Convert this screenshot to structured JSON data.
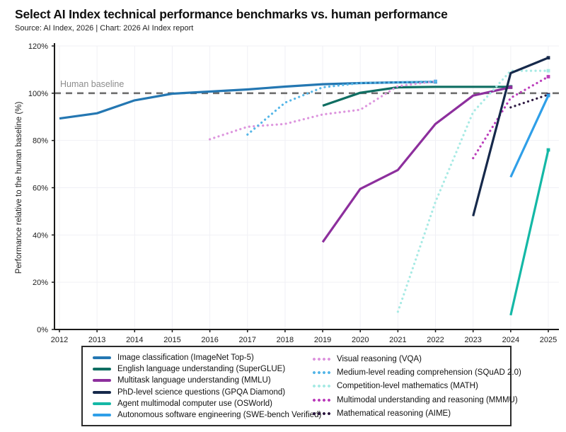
{
  "chart_data": {
    "type": "line",
    "title": "Select AI Index technical performance benchmarks vs. human performance",
    "source": "Source: AI Index, 2026 | Chart: 2026 AI Index report",
    "ylabel": "Performance relative to the human baseline (%)",
    "xlim": [
      2012,
      2025
    ],
    "ylim": [
      0,
      120
    ],
    "x_ticks": [
      2012,
      2013,
      2014,
      2015,
      2016,
      2017,
      2018,
      2019,
      2020,
      2021,
      2022,
      2023,
      2024,
      2025
    ],
    "y_ticks": [
      0,
      20,
      40,
      60,
      80,
      100,
      120
    ],
    "y_tick_suffix": "%",
    "grid": true,
    "legend_position": "bottom",
    "baseline": {
      "value": 100,
      "label": "Human baseline",
      "color": "#6e6e6e",
      "label_color": "#8c8c8c"
    },
    "axis_color": "#1a1a1a",
    "grid_color": "#f0f0f5",
    "series": [
      {
        "name": "Image classification (ImageNet Top-5)",
        "color": "#2477b2",
        "line_style": "solid",
        "legend_column": 1,
        "points": [
          [
            2012,
            89.3
          ],
          [
            2013,
            91.5
          ],
          [
            2014,
            97.0
          ],
          [
            2015,
            99.8
          ],
          [
            2016,
            100.7
          ],
          [
            2017,
            101.6
          ],
          [
            2018,
            102.8
          ],
          [
            2019,
            103.8
          ],
          [
            2020,
            104.3
          ],
          [
            2021,
            104.6
          ],
          [
            2022,
            104.8
          ]
        ]
      },
      {
        "name": "English language understanding (SuperGLUE)",
        "color": "#0f6e62",
        "line_style": "solid",
        "legend_column": 1,
        "points": [
          [
            2019,
            94.7
          ],
          [
            2020,
            100.2
          ],
          [
            2021,
            102.5
          ],
          [
            2022,
            102.7
          ],
          [
            2023,
            102.7
          ],
          [
            2024,
            102.7
          ]
        ]
      },
      {
        "name": "Multitask language understanding (MMLU)",
        "color": "#8d2f9d",
        "line_style": "solid",
        "legend_column": 1,
        "points": [
          [
            2019,
            37.0
          ],
          [
            2020,
            59.5
          ],
          [
            2021,
            67.5
          ],
          [
            2022,
            87.0
          ],
          [
            2023,
            99.0
          ],
          [
            2024,
            102.5
          ]
        ]
      },
      {
        "name": "PhD-level science questions (GPQA Diamond)",
        "color": "#16294b",
        "line_style": "solid",
        "legend_column": 1,
        "points": [
          [
            2023,
            48.0
          ],
          [
            2024,
            108.5
          ],
          [
            2025,
            115.0
          ]
        ]
      },
      {
        "name": "Agent multimodal computer use (OSWorld)",
        "color": "#14b8a6",
        "line_style": "solid",
        "legend_column": 1,
        "points": [
          [
            2024,
            6.0
          ],
          [
            2025,
            76.0
          ]
        ]
      },
      {
        "name": "Autonomous software engineering (SWE-bench Verified)",
        "color": "#2f9fe8",
        "line_style": "solid",
        "legend_column": 1,
        "points": [
          [
            2024,
            64.5
          ],
          [
            2025,
            99.0
          ]
        ]
      },
      {
        "name": "Visual reasoning (VQA)",
        "color": "#dd95de",
        "line_style": "dotted",
        "legend_column": 2,
        "points": [
          [
            2016,
            80.5
          ],
          [
            2017,
            85.8
          ],
          [
            2018,
            87.0
          ],
          [
            2019,
            91.0
          ],
          [
            2020,
            93.0
          ],
          [
            2021,
            103.0
          ],
          [
            2022,
            105.0
          ]
        ]
      },
      {
        "name": "Medium-level reading comprehension (SQuAD 2.0)",
        "color": "#57b7e8",
        "line_style": "dotted",
        "legend_column": 2,
        "points": [
          [
            2017,
            82.5
          ],
          [
            2018,
            96.0
          ],
          [
            2019,
            102.5
          ],
          [
            2020,
            104.3
          ],
          [
            2021,
            104.6
          ],
          [
            2022,
            105.0
          ]
        ]
      },
      {
        "name": "Competition-level mathematics (MATH)",
        "color": "#a7eae4",
        "line_style": "dotted",
        "legend_column": 2,
        "points": [
          [
            2021,
            7.5
          ],
          [
            2022,
            54.0
          ],
          [
            2023,
            92.0
          ],
          [
            2024,
            109.5
          ],
          [
            2025,
            109.5
          ]
        ]
      },
      {
        "name": "Multimodal understanding and reasoning (MMMU)",
        "color": "#bb3dbb",
        "line_style": "dotted",
        "legend_column": 2,
        "points": [
          [
            2023,
            72.5
          ],
          [
            2024,
            98.0
          ],
          [
            2025,
            107.0
          ]
        ]
      },
      {
        "name": "Mathematical reasoning (AIME)",
        "color": "#2e1a42",
        "line_style": "dotted",
        "legend_column": 2,
        "points": [
          [
            2024,
            94.0
          ],
          [
            2025,
            99.4
          ]
        ]
      }
    ]
  }
}
